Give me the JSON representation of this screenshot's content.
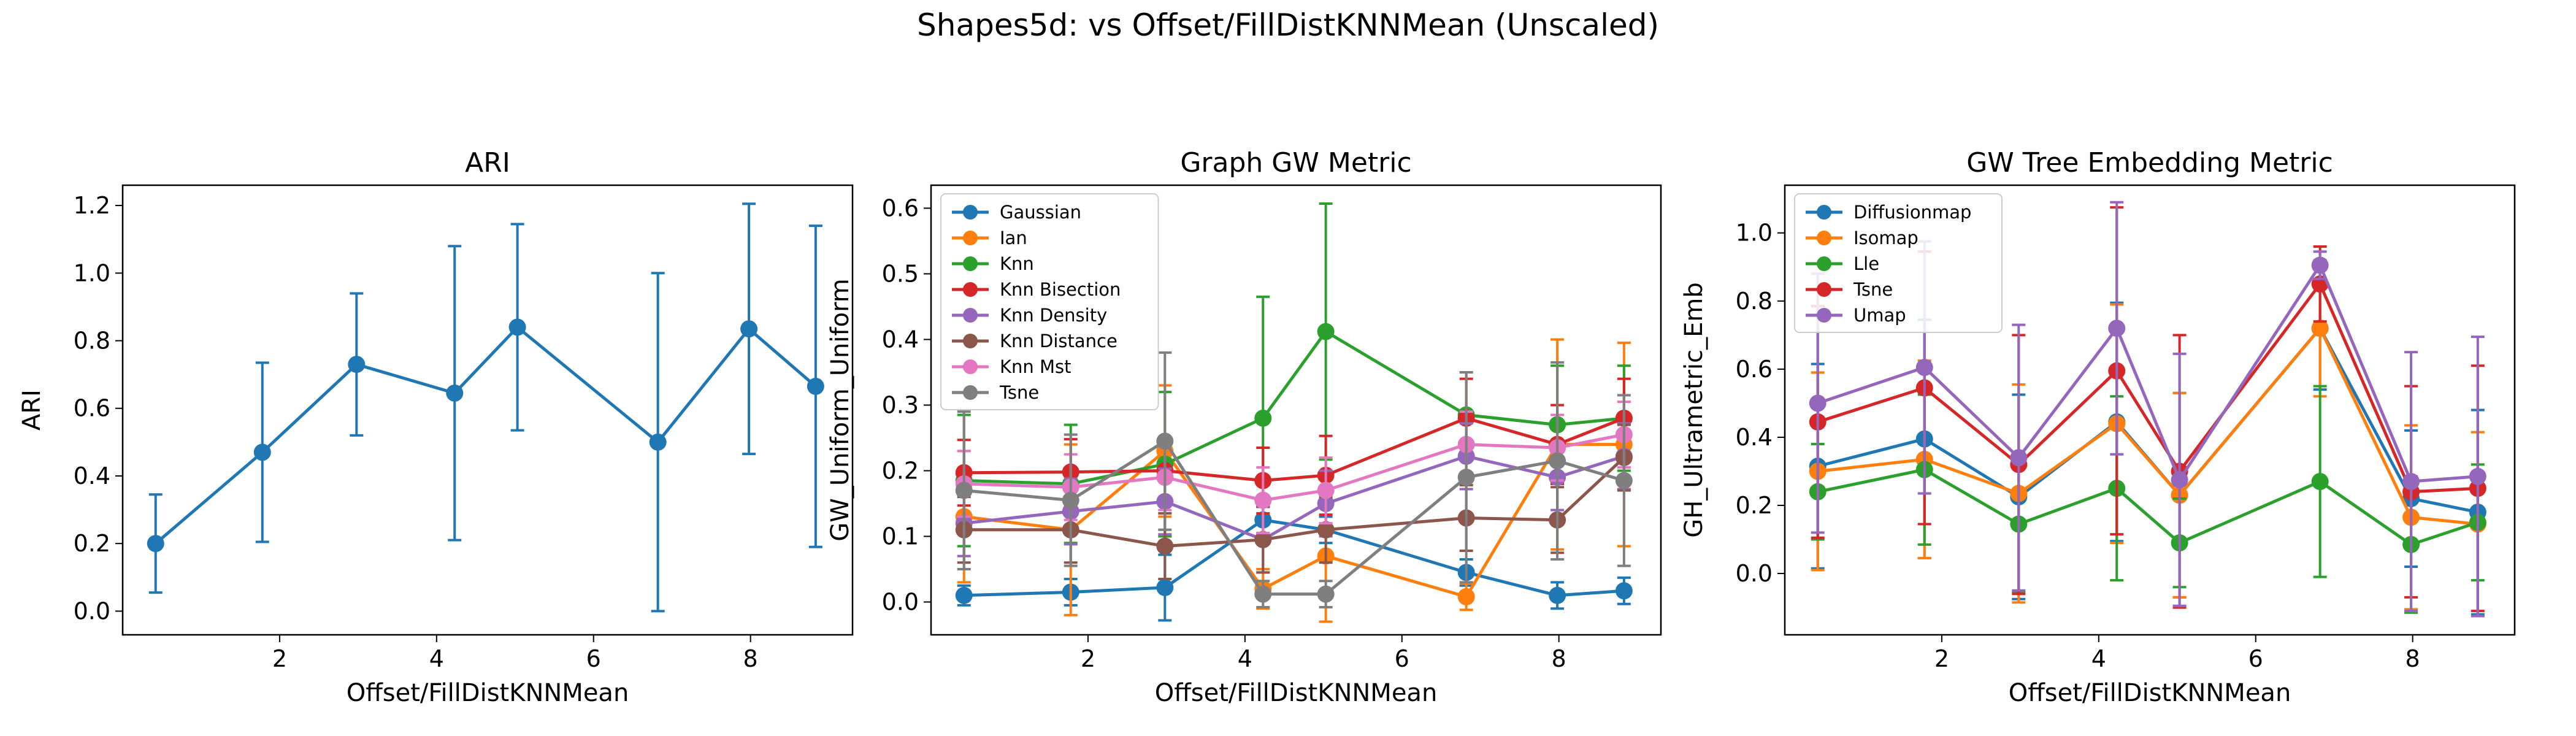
{
  "figure": {
    "title": "Shapes5d: vs Offset/FillDistKNNMean (Unscaled)"
  },
  "chart_data": [
    {
      "type": "line",
      "title": "ARI",
      "xlabel": "Offset/FillDistKNNMean",
      "ylabel": "ARI",
      "xlim": [
        0.0,
        9.3
      ],
      "ylim": [
        -0.07,
        1.26
      ],
      "xticks": [
        2,
        4,
        6,
        8
      ],
      "yticks": [
        0.0,
        0.2,
        0.4,
        0.6,
        0.8,
        1.0,
        1.2
      ],
      "x": [
        0.42,
        1.78,
        2.98,
        4.23,
        5.03,
        6.82,
        7.98,
        8.83
      ],
      "legend": null,
      "series": [
        {
          "name": "",
          "color": "#1f77b4",
          "values": [
            0.2,
            0.47,
            0.73,
            0.645,
            0.84,
            0.5,
            0.835,
            0.665
          ],
          "err": [
            0.145,
            0.265,
            0.21,
            0.435,
            0.305,
            0.5,
            0.37,
            0.475
          ]
        }
      ]
    },
    {
      "type": "line",
      "title": "Graph GW Metric",
      "xlabel": "Offset/FillDistKNNMean",
      "ylabel": "GW_Uniform_Uniform",
      "xlim": [
        0.0,
        9.3
      ],
      "ylim": [
        -0.05,
        0.635
      ],
      "xticks": [
        2,
        4,
        6,
        8
      ],
      "yticks": [
        0.0,
        0.1,
        0.2,
        0.3,
        0.4,
        0.5,
        0.6
      ],
      "x": [
        0.42,
        1.78,
        2.98,
        4.23,
        5.03,
        6.82,
        7.98,
        8.83
      ],
      "legend": "top-left",
      "series": [
        {
          "name": "Gaussian",
          "color": "#1f77b4",
          "values": [
            0.01,
            0.015,
            0.022,
            0.125,
            0.11,
            0.045,
            0.01,
            0.017
          ],
          "err": [
            0.015,
            0.02,
            0.05,
            0.02,
            0.02,
            0.02,
            0.02,
            0.02
          ]
        },
        {
          "name": "Ian",
          "color": "#ff7f0e",
          "values": [
            0.13,
            0.11,
            0.23,
            0.02,
            0.07,
            0.008,
            0.24,
            0.24
          ],
          "err": [
            0.1,
            0.13,
            0.1,
            0.03,
            0.1,
            0.02,
            0.16,
            0.155
          ]
        },
        {
          "name": "Knn",
          "color": "#2ca02c",
          "values": [
            0.185,
            0.18,
            0.21,
            0.28,
            0.412,
            0.285,
            0.27,
            0.28
          ],
          "err": [
            0.1,
            0.09,
            0.11,
            0.185,
            0.195,
            0.065,
            0.09,
            0.08
          ]
        },
        {
          "name": "Knn Bisection",
          "color": "#d62728",
          "values": [
            0.197,
            0.198,
            0.2,
            0.185,
            0.193,
            0.28,
            0.24,
            0.28
          ],
          "err": [
            0.05,
            0.05,
            0.05,
            0.05,
            0.06,
            0.06,
            0.06,
            0.06
          ]
        },
        {
          "name": "Knn Density",
          "color": "#9467bd",
          "values": [
            0.12,
            0.138,
            0.153,
            0.095,
            0.15,
            0.222,
            0.19,
            0.222
          ],
          "err": [
            0.05,
            0.05,
            0.05,
            0.05,
            0.05,
            0.05,
            0.05,
            0.05
          ]
        },
        {
          "name": "Knn Distance",
          "color": "#8c564b",
          "values": [
            0.11,
            0.11,
            0.085,
            0.095,
            0.11,
            0.128,
            0.125,
            0.22
          ],
          "err": [
            0.05,
            0.05,
            0.05,
            0.05,
            0.05,
            0.05,
            0.05,
            0.05
          ]
        },
        {
          "name": "Knn Mst",
          "color": "#e377c2",
          "values": [
            0.18,
            0.175,
            0.19,
            0.155,
            0.17,
            0.24,
            0.235,
            0.255
          ],
          "err": [
            0.05,
            0.05,
            0.05,
            0.05,
            0.05,
            0.05,
            0.05,
            0.05
          ]
        },
        {
          "name": "Tsne",
          "color": "#7f7f7f",
          "values": [
            0.17,
            0.155,
            0.245,
            0.012,
            0.012,
            0.19,
            0.215,
            0.185
          ],
          "err": [
            0.12,
            0.1,
            0.135,
            0.02,
            0.02,
            0.16,
            0.15,
            0.13
          ]
        }
      ]
    },
    {
      "type": "line",
      "title": "GW Tree Embedding Metric",
      "xlabel": "Offset/FillDistKNNMean",
      "ylabel": "GH_Ultrametric_Emb",
      "xlim": [
        0.0,
        9.3
      ],
      "ylim": [
        -0.18,
        1.14
      ],
      "xticks": [
        2,
        4,
        6,
        8
      ],
      "yticks": [
        0.0,
        0.2,
        0.4,
        0.6,
        0.8,
        1.0
      ],
      "x": [
        0.42,
        1.78,
        2.98,
        4.23,
        5.03,
        6.82,
        7.98,
        8.83
      ],
      "legend": "top-left",
      "series": [
        {
          "name": "Diffusionmap",
          "color": "#1f77b4",
          "values": [
            0.315,
            0.395,
            0.225,
            0.445,
            0.23,
            0.72,
            0.22,
            0.18
          ],
          "err": [
            0.3,
            0.35,
            0.3,
            0.35,
            0.3,
            0.18,
            0.2,
            0.3
          ]
        },
        {
          "name": "Isomap",
          "color": "#ff7f0e",
          "values": [
            0.3,
            0.335,
            0.235,
            0.44,
            0.23,
            0.72,
            0.165,
            0.145
          ],
          "err": [
            0.29,
            0.29,
            0.32,
            0.35,
            0.3,
            0.2,
            0.27,
            0.27
          ]
        },
        {
          "name": "Lle",
          "color": "#2ca02c",
          "values": [
            0.24,
            0.305,
            0.145,
            0.25,
            0.09,
            0.27,
            0.085,
            0.15
          ],
          "err": [
            0.14,
            0.22,
            0.2,
            0.27,
            0.13,
            0.28,
            0.2,
            0.17
          ]
        },
        {
          "name": "Tsne",
          "color": "#d62728",
          "values": [
            0.445,
            0.545,
            0.32,
            0.595,
            0.3,
            0.85,
            0.24,
            0.25
          ],
          "err": [
            0.34,
            0.4,
            0.38,
            0.48,
            0.4,
            0.11,
            0.31,
            0.36
          ]
        },
        {
          "name": "Umap",
          "color": "#9467bd",
          "values": [
            0.5,
            0.605,
            0.34,
            0.72,
            0.275,
            0.905,
            0.27,
            0.285
          ],
          "err": [
            0.38,
            0.37,
            0.39,
            0.37,
            0.37,
            0.04,
            0.38,
            0.41
          ]
        }
      ]
    }
  ]
}
